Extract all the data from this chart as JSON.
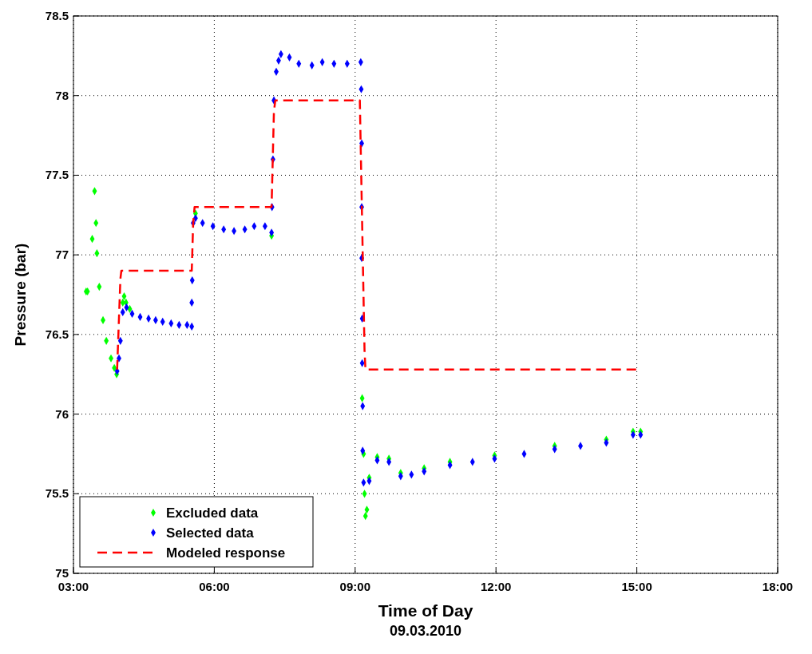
{
  "chart_data": {
    "type": "scatter",
    "xlabel": "Time of Day",
    "ylabel": "Pressure (bar)",
    "annotations": [
      "09.03.2010"
    ],
    "xlim": [
      3,
      18
    ],
    "xticks": [
      {
        "value": 3,
        "label": "03:00"
      },
      {
        "value": 6,
        "label": "06:00"
      },
      {
        "value": 9,
        "label": "09:00"
      },
      {
        "value": 12,
        "label": "12:00"
      },
      {
        "value": 15,
        "label": "15:00"
      },
      {
        "value": 18,
        "label": "18:00"
      }
    ],
    "ylim": [
      75,
      78.5
    ],
    "yticks": [
      75,
      75.5,
      76,
      76.5,
      77,
      77.5,
      78,
      78.5
    ],
    "grid": true,
    "legend": "bottom left",
    "marker": "diamond",
    "series": [
      {
        "name": "Excluded data",
        "color": "#00ff00",
        "x": [
          3.27,
          3.3,
          3.4,
          3.45,
          3.48,
          3.5,
          3.55,
          3.63,
          3.7,
          3.8,
          3.87,
          3.92,
          4.05,
          4.08,
          4.12,
          4.2,
          5.6,
          7.22,
          9.15,
          9.18,
          9.2,
          9.22,
          9.25,
          9.3,
          9.47,
          9.72,
          9.97,
          10.47,
          11.02,
          11.97,
          13.25,
          14.35,
          14.92,
          15.08
        ],
        "values": [
          76.77,
          76.77,
          77.1,
          77.4,
          77.2,
          77.01,
          76.8,
          76.59,
          76.46,
          76.35,
          76.29,
          76.25,
          76.7,
          76.74,
          76.7,
          76.66,
          77.26,
          77.12,
          76.1,
          75.75,
          75.5,
          75.36,
          75.4,
          75.6,
          75.73,
          75.72,
          75.63,
          75.66,
          75.7,
          75.74,
          75.8,
          75.84,
          75.89,
          75.89
        ]
      },
      {
        "name": "Selected data",
        "color": "#0000ff",
        "x": [
          3.93,
          3.97,
          4.0,
          4.05,
          4.13,
          4.25,
          4.42,
          4.6,
          4.75,
          4.9,
          5.08,
          5.25,
          5.42,
          5.52,
          5.52,
          5.53,
          5.55,
          5.6,
          5.75,
          5.97,
          6.2,
          6.42,
          6.65,
          6.85,
          7.08,
          7.22,
          7.23,
          7.25,
          7.27,
          7.32,
          7.37,
          7.42,
          7.6,
          7.8,
          8.08,
          8.3,
          8.55,
          8.83,
          9.12,
          9.13,
          9.14,
          9.14,
          9.14,
          9.15,
          9.15,
          9.16,
          9.16,
          9.18,
          9.3,
          9.47,
          9.72,
          9.97,
          10.2,
          10.47,
          11.02,
          11.5,
          11.97,
          12.6,
          13.25,
          13.8,
          14.35,
          14.92,
          15.08
        ],
        "values": [
          76.27,
          76.35,
          76.46,
          76.64,
          76.67,
          76.63,
          76.61,
          76.6,
          76.59,
          76.58,
          76.57,
          76.56,
          76.56,
          76.55,
          76.7,
          76.84,
          77.2,
          77.23,
          77.2,
          77.18,
          77.16,
          77.15,
          77.16,
          77.18,
          77.18,
          77.14,
          77.3,
          77.6,
          77.97,
          78.15,
          78.22,
          78.26,
          78.24,
          78.2,
          78.19,
          78.21,
          78.2,
          78.2,
          78.21,
          78.04,
          77.7,
          77.3,
          76.98,
          76.6,
          76.32,
          76.05,
          75.77,
          75.57,
          75.58,
          75.71,
          75.7,
          75.61,
          75.62,
          75.64,
          75.68,
          75.7,
          75.72,
          75.75,
          75.78,
          75.8,
          75.82,
          75.87,
          75.87
        ]
      },
      {
        "name": "Modeled response",
        "type": "line",
        "color": "#ff0000",
        "marker": "none",
        "line_style": "dashed",
        "x": [
          3.93,
          4.0,
          4.02,
          5.52,
          5.55,
          5.58,
          7.22,
          7.27,
          7.3,
          9.1,
          9.2,
          9.22,
          15.05
        ],
        "values": [
          76.28,
          76.85,
          76.9,
          76.9,
          77.2,
          77.3,
          77.3,
          77.9,
          77.97,
          77.97,
          76.4,
          76.28,
          76.28
        ]
      }
    ]
  }
}
